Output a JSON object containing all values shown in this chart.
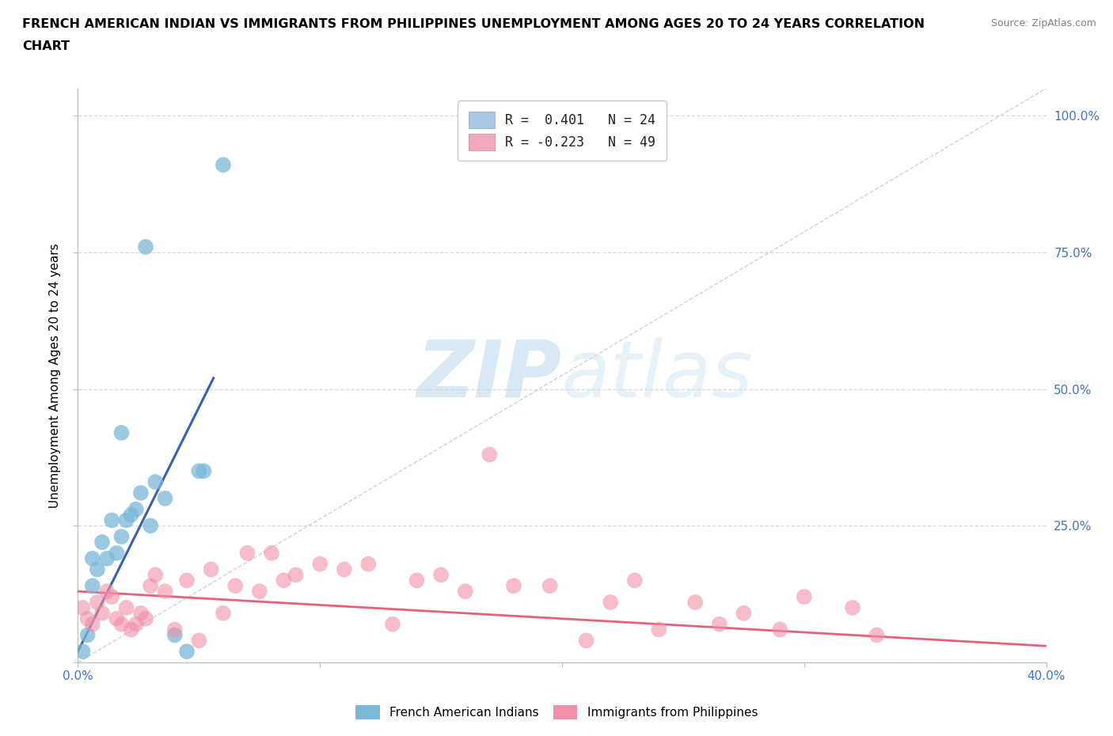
{
  "title_line1": "FRENCH AMERICAN INDIAN VS IMMIGRANTS FROM PHILIPPINES UNEMPLOYMENT AMONG AGES 20 TO 24 YEARS CORRELATION",
  "title_line2": "CHART",
  "source": "Source: ZipAtlas.com",
  "ylabel": "Unemployment Among Ages 20 to 24 years",
  "xlim": [
    0.0,
    0.4
  ],
  "ylim": [
    0.0,
    1.05
  ],
  "legend1_label": "R =  0.401   N = 24",
  "legend2_label": "R = -0.223   N = 49",
  "legend1_color": "#a8c8e8",
  "legend2_color": "#f4a8bc",
  "blue_scatter_x": [
    0.002,
    0.004,
    0.006,
    0.006,
    0.008,
    0.01,
    0.012,
    0.014,
    0.016,
    0.018,
    0.02,
    0.022,
    0.024,
    0.026,
    0.03,
    0.032,
    0.036,
    0.04,
    0.045,
    0.05,
    0.018,
    0.052,
    0.028,
    0.06
  ],
  "blue_scatter_y": [
    0.02,
    0.05,
    0.14,
    0.19,
    0.17,
    0.22,
    0.19,
    0.26,
    0.2,
    0.23,
    0.26,
    0.27,
    0.28,
    0.31,
    0.25,
    0.33,
    0.3,
    0.05,
    0.02,
    0.35,
    0.42,
    0.35,
    0.76,
    0.91
  ],
  "pink_scatter_x": [
    0.002,
    0.004,
    0.006,
    0.008,
    0.01,
    0.012,
    0.014,
    0.016,
    0.018,
    0.02,
    0.022,
    0.024,
    0.026,
    0.028,
    0.03,
    0.032,
    0.036,
    0.04,
    0.045,
    0.05,
    0.055,
    0.06,
    0.065,
    0.07,
    0.075,
    0.08,
    0.085,
    0.09,
    0.1,
    0.11,
    0.12,
    0.13,
    0.14,
    0.15,
    0.16,
    0.17,
    0.18,
    0.195,
    0.21,
    0.22,
    0.23,
    0.24,
    0.255,
    0.265,
    0.275,
    0.29,
    0.3,
    0.32,
    0.33
  ],
  "pink_scatter_y": [
    0.1,
    0.08,
    0.07,
    0.11,
    0.09,
    0.13,
    0.12,
    0.08,
    0.07,
    0.1,
    0.06,
    0.07,
    0.09,
    0.08,
    0.14,
    0.16,
    0.13,
    0.06,
    0.15,
    0.04,
    0.17,
    0.09,
    0.14,
    0.2,
    0.13,
    0.2,
    0.15,
    0.16,
    0.18,
    0.17,
    0.18,
    0.07,
    0.15,
    0.16,
    0.13,
    0.38,
    0.14,
    0.14,
    0.04,
    0.11,
    0.15,
    0.06,
    0.11,
    0.07,
    0.09,
    0.06,
    0.12,
    0.1,
    0.05
  ],
  "blue_line_x": [
    0.0,
    0.056
  ],
  "blue_line_y": [
    0.02,
    0.52
  ],
  "pink_line_x": [
    0.0,
    0.4
  ],
  "pink_line_y": [
    0.13,
    0.03
  ],
  "trendline_x": [
    0.0,
    0.4
  ],
  "trendline_y": [
    0.0,
    1.05
  ],
  "watermark_zip": "ZIP",
  "watermark_atlas": "atlas",
  "watermark_color": "#cce5f5",
  "blue_color": "#7bb8d8",
  "pink_color": "#f090a8",
  "blue_line_color": "#3a5fac",
  "pink_line_color": "#e8607a",
  "background_color": "#ffffff",
  "grid_color": "#d8d8d8",
  "tick_color": "#4472c4",
  "axis_label_color": "#000000"
}
